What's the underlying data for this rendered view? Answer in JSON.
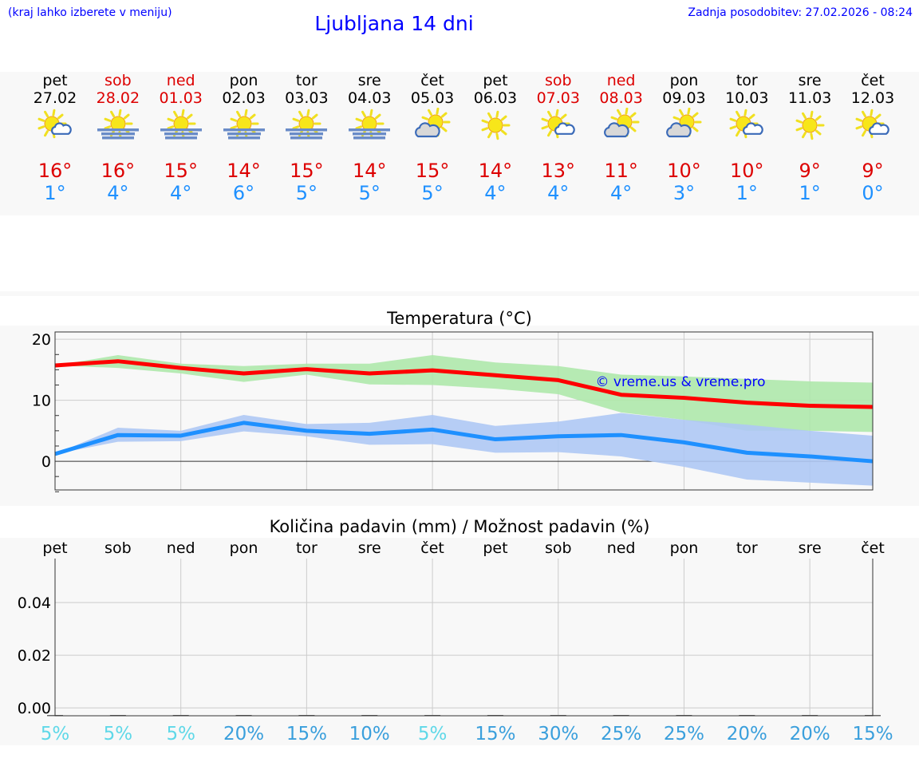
{
  "header": {
    "hint": "(kraj lahko izberete v meniju)",
    "title": "Ljubljana 14 dni",
    "updated": "Zadnja posodobitev: 27.02.2026 - 08:24"
  },
  "days": [
    {
      "name": "pet",
      "date": "27.02",
      "weekend": false,
      "icon": "sun-small-cloud-icon",
      "max": "16°",
      "min": "1°"
    },
    {
      "name": "sob",
      "date": "28.02",
      "weekend": true,
      "icon": "sun-fog-icon",
      "max": "16°",
      "min": "4°"
    },
    {
      "name": "ned",
      "date": "01.03",
      "weekend": true,
      "icon": "sun-fog-icon",
      "max": "15°",
      "min": "4°"
    },
    {
      "name": "pon",
      "date": "02.03",
      "weekend": false,
      "icon": "sun-fog-icon",
      "max": "14°",
      "min": "6°"
    },
    {
      "name": "tor",
      "date": "03.03",
      "weekend": false,
      "icon": "sun-fog-icon",
      "max": "15°",
      "min": "5°"
    },
    {
      "name": "sre",
      "date": "04.03",
      "weekend": false,
      "icon": "sun-fog-icon",
      "max": "14°",
      "min": "5°"
    },
    {
      "name": "čet",
      "date": "05.03",
      "weekend": false,
      "icon": "sun-big-cloud-icon",
      "max": "15°",
      "min": "5°"
    },
    {
      "name": "pet",
      "date": "06.03",
      "weekend": false,
      "icon": "sun-icon",
      "max": "14°",
      "min": "4°"
    },
    {
      "name": "sob",
      "date": "07.03",
      "weekend": true,
      "icon": "sun-small-cloud-icon",
      "max": "13°",
      "min": "4°"
    },
    {
      "name": "ned",
      "date": "08.03",
      "weekend": true,
      "icon": "sun-big-cloud-icon",
      "max": "11°",
      "min": "4°"
    },
    {
      "name": "pon",
      "date": "09.03",
      "weekend": false,
      "icon": "sun-big-cloud-icon",
      "max": "10°",
      "min": "3°"
    },
    {
      "name": "tor",
      "date": "10.03",
      "weekend": false,
      "icon": "sun-small-cloud-icon",
      "max": "10°",
      "min": "1°"
    },
    {
      "name": "sre",
      "date": "11.03",
      "weekend": false,
      "icon": "sun-icon",
      "max": "9°",
      "min": "1°"
    },
    {
      "name": "čet",
      "date": "12.03",
      "weekend": false,
      "icon": "sun-small-cloud-icon",
      "max": "9°",
      "min": "0°"
    }
  ],
  "chart_data": [
    {
      "type": "line",
      "title": "Temperatura (°C)",
      "watermark": "© vreme.us & vreme.pro",
      "ylim": [
        -4.7,
        21.2
      ],
      "yticks": [
        "20",
        "10",
        "0"
      ],
      "ytick_values": [
        20,
        10,
        0
      ],
      "series": [
        {
          "name": "max",
          "color": "#ff0000",
          "values": [
            15.7,
            16.4,
            15.3,
            14.4,
            15.1,
            14.4,
            14.9,
            14.1,
            13.3,
            10.9,
            10.4,
            9.6,
            9.1,
            8.9
          ],
          "band_upper": [
            15.7,
            17.4,
            16.0,
            15.6,
            16.0,
            16.0,
            17.4,
            16.2,
            15.6,
            14.2,
            13.9,
            13.5,
            13.1,
            12.9
          ],
          "band_lower": [
            15.7,
            15.3,
            14.4,
            13.0,
            14.2,
            12.6,
            12.5,
            11.9,
            11.0,
            8.0,
            6.8,
            5.0,
            5.0,
            4.8
          ],
          "band_color": "#aee8ab"
        },
        {
          "name": "min",
          "color": "#1e90ff",
          "values": [
            1.2,
            4.3,
            4.2,
            6.3,
            5.0,
            4.5,
            5.2,
            3.6,
            4.1,
            4.3,
            3.1,
            1.4,
            0.8,
            0.0
          ],
          "band_upper": [
            1.2,
            5.5,
            5.0,
            7.6,
            6.1,
            6.3,
            7.6,
            5.8,
            6.5,
            7.9,
            6.8,
            6.0,
            5.0,
            4.2
          ],
          "band_lower": [
            1.2,
            3.2,
            3.3,
            4.9,
            4.1,
            2.7,
            2.8,
            1.4,
            1.5,
            0.8,
            -0.9,
            -3.0,
            -3.5,
            -4.0
          ],
          "band_color": "#aec8f4"
        }
      ]
    },
    {
      "type": "bar",
      "title": "Količina padavin (mm) / Možnost padavin (%)",
      "ylim": [
        -0.003,
        0.0567
      ],
      "yticks": [
        "0.04",
        "0.02",
        "0.00"
      ],
      "ytick_values": [
        0.04,
        0.02,
        0.0
      ],
      "categories": [
        "pet",
        "sob",
        "ned",
        "pon",
        "tor",
        "sre",
        "čet",
        "pet",
        "sob",
        "ned",
        "pon",
        "tor",
        "sre",
        "čet"
      ],
      "values": [
        0,
        0,
        0,
        0,
        0,
        0,
        0,
        0,
        0,
        0,
        0,
        0,
        0,
        0
      ],
      "probability": [
        "5%",
        "5%",
        "5%",
        "20%",
        "15%",
        "10%",
        "5%",
        "15%",
        "30%",
        "25%",
        "25%",
        "20%",
        "20%",
        "15%"
      ],
      "prob_color_low": "#5fd8e8",
      "prob_color": "#3a9fdc"
    }
  ]
}
